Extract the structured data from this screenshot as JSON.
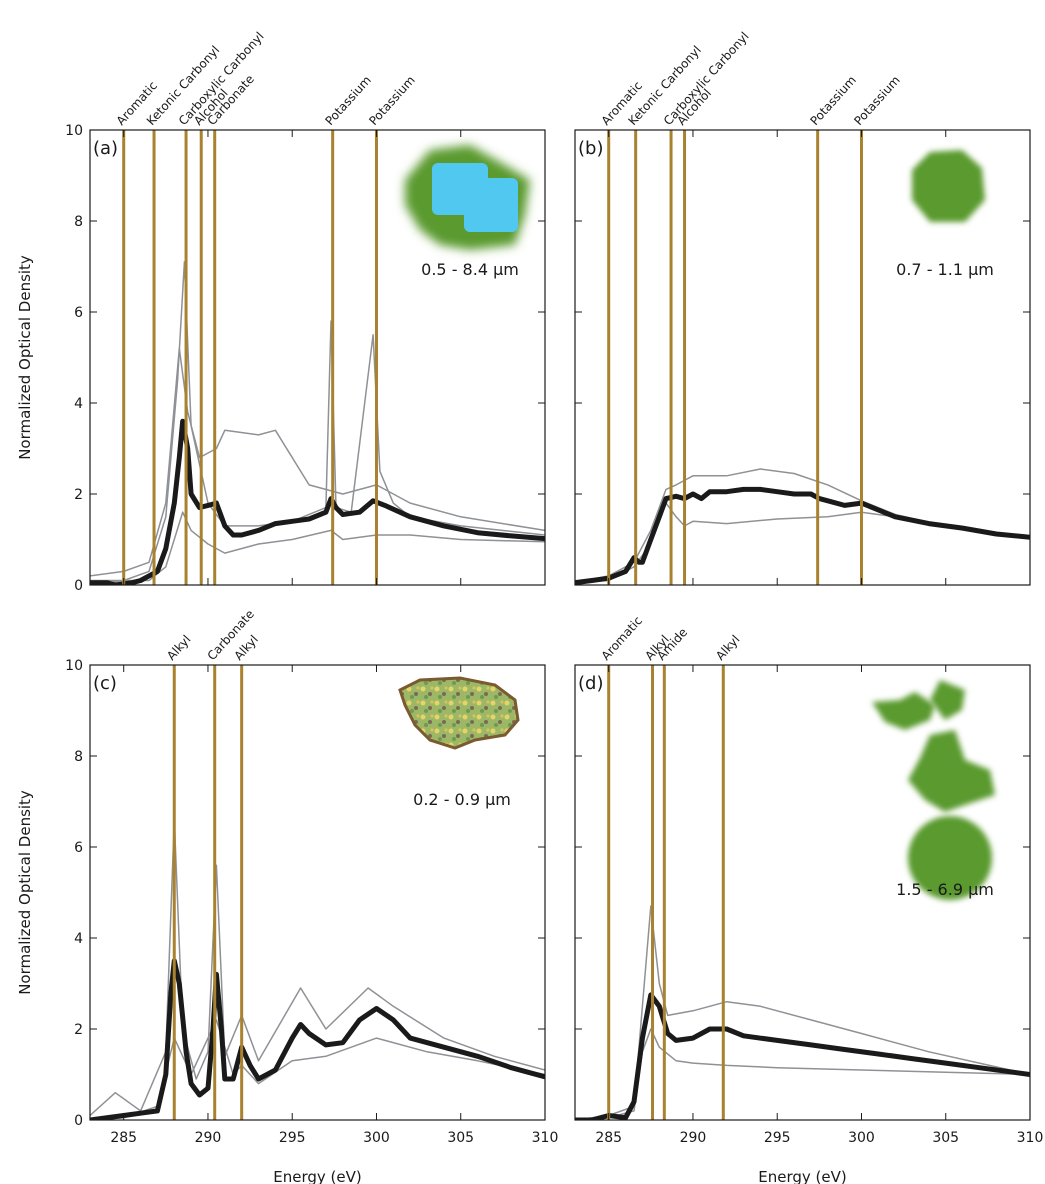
{
  "chart_data": [
    {
      "type": "line",
      "label": "(a)",
      "inset_label": "0.5 - 8.4 μm",
      "ylabel": "Normalized Optical Density",
      "xlim": [
        283,
        310
      ],
      "ylim": [
        0,
        10
      ],
      "xticks": [
        285,
        290,
        295,
        300,
        305,
        310
      ],
      "yticks": [
        0,
        2,
        4,
        6,
        8,
        10
      ],
      "xtick_labels": false,
      "ytick_labels": true,
      "vline_color": "#a8822f",
      "vlines": [
        {
          "x": 285.0,
          "label": "Aromatic"
        },
        {
          "x": 286.8,
          "label": "Ketonic Carbonyl"
        },
        {
          "x": 288.7,
          "label": "Carboxylic Carbonyl"
        },
        {
          "x": 289.6,
          "label": "Alcohol"
        },
        {
          "x": 290.4,
          "label": "Carbonate"
        },
        {
          "x": 297.4,
          "label": "Potassium"
        },
        {
          "x": 300.0,
          "label": "Potassium"
        }
      ],
      "series": [
        {
          "color": "#8e9196",
          "line_width": 1.5,
          "x": [
            283,
            285,
            286.5,
            287.5,
            288.2,
            288.6,
            289,
            290,
            291,
            293,
            295,
            297,
            297.3,
            297.6,
            298.5,
            299.8,
            300.2,
            301,
            302,
            305,
            310
          ],
          "values": [
            0.1,
            0.1,
            0.3,
            1.5,
            4.5,
            7.1,
            3.5,
            1.8,
            1.3,
            1.3,
            1.4,
            1.7,
            5.8,
            1.7,
            1.6,
            5.5,
            2.5,
            1.8,
            1.5,
            1.3,
            1.1
          ]
        },
        {
          "color": "#8e9196",
          "line_width": 1.5,
          "x": [
            283,
            285,
            286.5,
            287.5,
            288.3,
            288.8,
            289.5,
            290.5,
            291,
            293,
            294,
            296,
            298,
            300,
            302,
            305,
            310
          ],
          "values": [
            0.2,
            0.3,
            0.5,
            1.8,
            5.2,
            3.8,
            2.8,
            3.0,
            3.4,
            3.3,
            3.4,
            2.2,
            2.0,
            2.2,
            1.8,
            1.5,
            1.2
          ]
        },
        {
          "color": "#8e9196",
          "line_width": 1.5,
          "x": [
            283,
            285,
            286.5,
            287.5,
            288.5,
            289,
            290,
            291,
            293,
            295,
            297.3,
            298,
            300,
            302,
            305,
            310
          ],
          "values": [
            0,
            0.1,
            0.1,
            0.4,
            1.6,
            1.2,
            0.9,
            0.7,
            0.9,
            1.0,
            1.2,
            1.0,
            1.1,
            1.1,
            1.0,
            0.95
          ]
        },
        {
          "color": "#1a1a1a",
          "line_width": 5,
          "x": [
            283,
            284,
            284.5,
            285.5,
            286,
            286.5,
            287,
            287.5,
            288,
            288.3,
            288.5,
            288.8,
            289,
            289.5,
            290,
            290.5,
            291,
            291.5,
            292,
            293,
            294,
            295,
            296,
            297,
            297.3,
            297.6,
            298,
            299,
            299.8,
            300.5,
            302,
            304,
            306,
            308,
            310
          ],
          "values": [
            0.05,
            0.05,
            0.0,
            0.05,
            0.1,
            0.2,
            0.3,
            0.8,
            1.8,
            2.8,
            3.6,
            3.0,
            2.0,
            1.7,
            1.75,
            1.8,
            1.3,
            1.1,
            1.1,
            1.2,
            1.35,
            1.4,
            1.45,
            1.6,
            1.9,
            1.7,
            1.55,
            1.6,
            1.85,
            1.75,
            1.5,
            1.3,
            1.15,
            1.08,
            1.02
          ]
        }
      ]
    },
    {
      "type": "line",
      "label": "(b)",
      "inset_label": "0.7 - 1.1 μm",
      "xlim": [
        283,
        310
      ],
      "ylim": [
        0,
        10
      ],
      "xticks": [
        285,
        290,
        295,
        300,
        305,
        310
      ],
      "yticks": [
        0,
        2,
        4,
        6,
        8,
        10
      ],
      "xtick_labels": false,
      "ytick_labels": false,
      "vline_color": "#a8822f",
      "vlines": [
        {
          "x": 285.0,
          "label": "Aromatic"
        },
        {
          "x": 286.6,
          "label": "Ketonic Carbonyl"
        },
        {
          "x": 288.7,
          "label": "Carboxylic Carbonyl"
        },
        {
          "x": 289.5,
          "label": "Alcohol"
        },
        {
          "x": 297.4,
          "label": "Potassium"
        },
        {
          "x": 300.0,
          "label": "Potassium"
        }
      ],
      "series": [
        {
          "color": "#8e9196",
          "line_width": 1.5,
          "x": [
            283,
            285,
            286.5,
            287.5,
            288.4,
            289,
            290,
            292,
            294,
            296,
            298,
            300,
            302,
            305,
            310
          ],
          "values": [
            0.05,
            0.2,
            0.5,
            1.2,
            2.1,
            2.2,
            2.4,
            2.4,
            2.55,
            2.45,
            2.2,
            1.85,
            1.55,
            1.3,
            1.05
          ]
        },
        {
          "color": "#8e9196",
          "line_width": 1.5,
          "x": [
            283,
            285,
            286.5,
            287.5,
            288.4,
            289,
            289.5,
            290,
            292,
            295,
            298,
            300,
            302,
            305,
            310
          ],
          "values": [
            0.05,
            0.1,
            0.4,
            0.9,
            1.8,
            1.5,
            1.3,
            1.4,
            1.35,
            1.45,
            1.5,
            1.6,
            1.5,
            1.3,
            1.05
          ]
        },
        {
          "color": "#1a1a1a",
          "line_width": 5,
          "x": [
            283,
            284,
            285,
            286,
            286.5,
            286.8,
            287,
            287.5,
            288,
            288.4,
            289,
            289.5,
            290,
            290.5,
            291,
            292,
            293,
            294,
            295,
            296,
            297,
            297.5,
            298,
            299,
            300,
            301,
            302,
            304,
            306,
            308,
            310
          ],
          "values": [
            0.05,
            0.1,
            0.15,
            0.3,
            0.6,
            0.5,
            0.5,
            1.0,
            1.5,
            1.9,
            1.95,
            1.9,
            2.0,
            1.9,
            2.05,
            2.05,
            2.1,
            2.1,
            2.05,
            2.0,
            2.0,
            1.9,
            1.85,
            1.75,
            1.8,
            1.65,
            1.5,
            1.35,
            1.25,
            1.12,
            1.05
          ]
        }
      ]
    },
    {
      "type": "line",
      "label": "(c)",
      "inset_label": "0.2 - 0.9 μm",
      "ylabel": "Normalized Optical Density",
      "xlabel": "Energy (eV)",
      "xlim": [
        283,
        310
      ],
      "ylim": [
        0,
        10
      ],
      "xticks": [
        285,
        290,
        295,
        300,
        305,
        310
      ],
      "yticks": [
        0,
        2,
        4,
        6,
        8,
        10
      ],
      "xtick_labels": true,
      "ytick_labels": true,
      "vline_color": "#a8822f",
      "vlines": [
        {
          "x": 288.0,
          "label": "Alkyl"
        },
        {
          "x": 290.4,
          "label": "Carbonate"
        },
        {
          "x": 292.0,
          "label": "Alkyl"
        }
      ],
      "series": [
        {
          "color": "#8e9196",
          "line_width": 1.5,
          "x": [
            283,
            284.5,
            286,
            287.5,
            288,
            288.5,
            289.3,
            290,
            290.5,
            291,
            292,
            293,
            295.5,
            297,
            299.5,
            301,
            304,
            307,
            310
          ],
          "values": [
            0.1,
            0.6,
            0.2,
            1.5,
            6.6,
            2.0,
            0.9,
            1.5,
            5.6,
            1.4,
            2.3,
            1.3,
            2.9,
            2.0,
            2.9,
            2.5,
            1.8,
            1.4,
            1.1
          ]
        },
        {
          "color": "#8e9196",
          "line_width": 1.5,
          "x": [
            283,
            285,
            287,
            288,
            289,
            290.5,
            291.5,
            292,
            293,
            295,
            297,
            300,
            303,
            306,
            310
          ],
          "values": [
            0.0,
            0.05,
            0.3,
            1.8,
            1.0,
            2.2,
            1.0,
            1.2,
            0.8,
            1.3,
            1.4,
            1.8,
            1.5,
            1.3,
            1.0
          ]
        },
        {
          "color": "#1a1a1a",
          "line_width": 5,
          "x": [
            283,
            284,
            285,
            286,
            287,
            287.5,
            287.8,
            288,
            288.3,
            288.7,
            289,
            289.5,
            290,
            290.3,
            290.5,
            290.8,
            291,
            291.5,
            292,
            292.5,
            293,
            294,
            295,
            295.5,
            296,
            297,
            298,
            299,
            300,
            301,
            302,
            304,
            306,
            308,
            310
          ],
          "values": [
            0,
            0.05,
            0.1,
            0.15,
            0.2,
            1.0,
            2.8,
            3.5,
            3.0,
            1.5,
            0.8,
            0.55,
            0.7,
            2.0,
            3.2,
            2.0,
            0.9,
            0.9,
            1.6,
            1.2,
            0.9,
            1.1,
            1.8,
            2.1,
            1.9,
            1.65,
            1.7,
            2.2,
            2.45,
            2.2,
            1.8,
            1.6,
            1.4,
            1.15,
            0.95
          ]
        }
      ]
    },
    {
      "type": "line",
      "label": "(d)",
      "inset_label": "1.5 - 6.9 μm",
      "xlabel": "Energy (eV)",
      "xlim": [
        283,
        310
      ],
      "ylim": [
        0,
        10
      ],
      "xticks": [
        285,
        290,
        295,
        300,
        305,
        310
      ],
      "yticks": [
        0,
        2,
        4,
        6,
        8,
        10
      ],
      "xtick_labels": true,
      "ytick_labels": false,
      "vline_color": "#a8822f",
      "vlines": [
        {
          "x": 285.0,
          "label": "Aromatic"
        },
        {
          "x": 287.6,
          "label": "Alkyl"
        },
        {
          "x": 288.3,
          "label": "Amide"
        },
        {
          "x": 291.8,
          "label": "Alkyl"
        }
      ],
      "series": [
        {
          "color": "#8e9196",
          "line_width": 1.5,
          "x": [
            283,
            285,
            286.5,
            287,
            287.5,
            288,
            288.5,
            290,
            292,
            294,
            297,
            300,
            304,
            310
          ],
          "values": [
            0,
            0.1,
            0.3,
            2.5,
            4.7,
            3.0,
            2.3,
            2.4,
            2.6,
            2.5,
            2.2,
            1.9,
            1.5,
            1.0
          ]
        },
        {
          "color": "#8e9196",
          "line_width": 1.5,
          "x": [
            283,
            285,
            286.5,
            287,
            287.5,
            288,
            289,
            290,
            292,
            295,
            300,
            305,
            310
          ],
          "values": [
            0,
            0.05,
            0.2,
            1.5,
            2.0,
            1.6,
            1.3,
            1.25,
            1.2,
            1.15,
            1.1,
            1.05,
            1.0
          ]
        },
        {
          "color": "#1a1a1a",
          "line_width": 5,
          "x": [
            283,
            284,
            285,
            286,
            286.5,
            287,
            287.5,
            288,
            288.5,
            289,
            290,
            291,
            292,
            293,
            295,
            297,
            299,
            301,
            303,
            305,
            307,
            309,
            310
          ],
          "values": [
            0,
            0,
            0.1,
            0.05,
            0.4,
            1.8,
            2.75,
            2.5,
            1.9,
            1.75,
            1.8,
            2.0,
            2.0,
            1.85,
            1.75,
            1.65,
            1.55,
            1.45,
            1.35,
            1.25,
            1.15,
            1.05,
            1.0
          ]
        }
      ]
    }
  ]
}
